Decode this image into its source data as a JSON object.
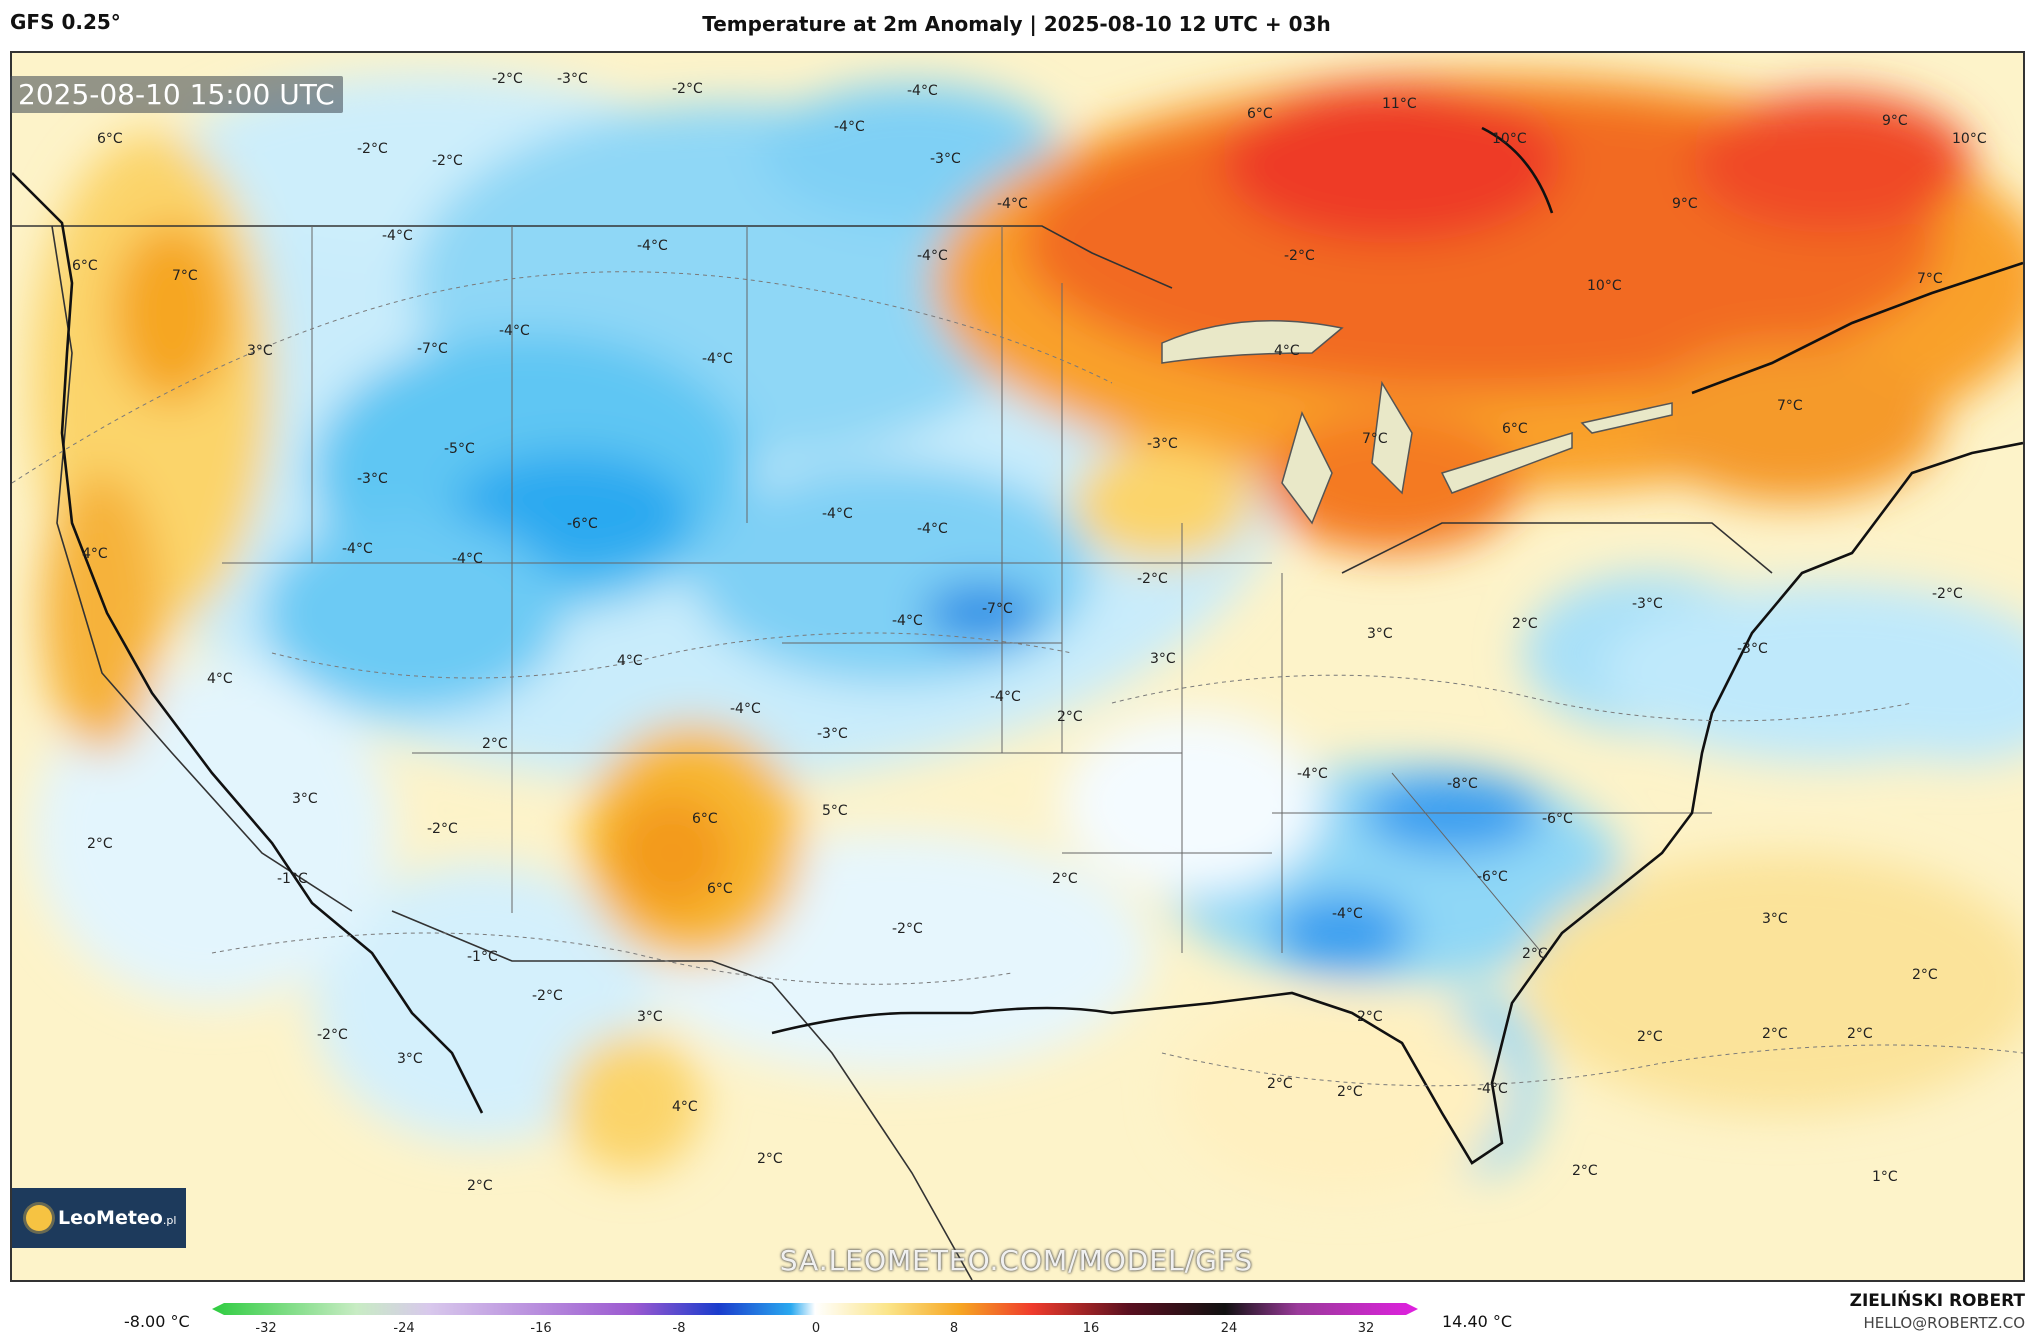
{
  "header": {
    "model": "GFS 0.25°",
    "title": "Temperature at 2m Anomaly | 2025-08-10 12 UTC + 03h"
  },
  "map": {
    "valid_time": "2025-08-10 15:00 UTC",
    "watermark": "SA.LEOMETEO.COM/MODEL/GFS",
    "logo_text": "LeoMeteo",
    "logo_suffix": ".pl",
    "labels": [
      {
        "text": "-2°C"
      },
      {
        "text": "-3°C"
      },
      {
        "text": "-2°C"
      },
      {
        "text": "-4°C"
      },
      {
        "text": "-4°C"
      },
      {
        "text": "-3°C"
      },
      {
        "text": "-4°C"
      },
      {
        "text": "6°C"
      },
      {
        "text": "11°C"
      },
      {
        "text": "10°C"
      },
      {
        "text": "9°C"
      },
      {
        "text": "10°C"
      },
      {
        "text": "6°C"
      },
      {
        "text": "-2°C"
      },
      {
        "text": "-2°C"
      },
      {
        "text": "6°C"
      },
      {
        "text": "7°C"
      },
      {
        "text": "-4°C"
      },
      {
        "text": "-4°C"
      },
      {
        "text": "-4°C"
      },
      {
        "text": "-2°C"
      },
      {
        "text": "9°C"
      },
      {
        "text": "10°C"
      },
      {
        "text": "7°C"
      },
      {
        "text": "3°C"
      },
      {
        "text": "-7°C"
      },
      {
        "text": "-4°C"
      },
      {
        "text": "-4°C"
      },
      {
        "text": "4°C"
      },
      {
        "text": "-5°C"
      },
      {
        "text": "-3°C"
      },
      {
        "text": "-3°C"
      },
      {
        "text": "7°C"
      },
      {
        "text": "6°C"
      },
      {
        "text": "7°C"
      },
      {
        "text": "-6°C"
      },
      {
        "text": "-4°C"
      },
      {
        "text": "-4°C"
      },
      {
        "text": "4°C"
      },
      {
        "text": "-4°C"
      },
      {
        "text": "-4°C"
      },
      {
        "text": "-2°C"
      },
      {
        "text": "-7°C"
      },
      {
        "text": "-4°C"
      },
      {
        "text": "-3°C"
      },
      {
        "text": "-2°C"
      },
      {
        "text": "4°C"
      },
      {
        "text": "4°C"
      },
      {
        "text": "3°C"
      },
      {
        "text": "3°C"
      },
      {
        "text": "2°C"
      },
      {
        "text": "-3°C"
      },
      {
        "text": "-4°C"
      },
      {
        "text": "-4°C"
      },
      {
        "text": "2°C"
      },
      {
        "text": "2°C"
      },
      {
        "text": "-3°C"
      },
      {
        "text": "-4°C"
      },
      {
        "text": "3°C"
      },
      {
        "text": "6°C"
      },
      {
        "text": "5°C"
      },
      {
        "text": "-8°C"
      },
      {
        "text": "-6°C"
      },
      {
        "text": "2°C"
      },
      {
        "text": "-2°C"
      },
      {
        "text": "-1°C"
      },
      {
        "text": "6°C"
      },
      {
        "text": "2°C"
      },
      {
        "text": "-6°C"
      },
      {
        "text": "-4°C"
      },
      {
        "text": "-2°C"
      },
      {
        "text": "-1°C"
      },
      {
        "text": "-2°C"
      },
      {
        "text": "3°C"
      },
      {
        "text": "2°C"
      },
      {
        "text": "3°C"
      },
      {
        "text": "2°C"
      },
      {
        "text": "-2°C"
      },
      {
        "text": "3°C"
      },
      {
        "text": "2°C"
      },
      {
        "text": "2°C"
      },
      {
        "text": "2°C"
      },
      {
        "text": "2°C"
      },
      {
        "text": "4°C"
      },
      {
        "text": "-4°C"
      },
      {
        "text": "2°C"
      },
      {
        "text": "2°C"
      },
      {
        "text": "2°C"
      },
      {
        "text": "1°C"
      },
      {
        "text": "2°C"
      },
      {
        "text": "2°C"
      }
    ]
  },
  "legend": {
    "min_label": "-8.00 °C",
    "max_label": "14.40 °C",
    "ticks": [
      "-32",
      "-24",
      "-16",
      "-8",
      "0",
      "8",
      "16",
      "24",
      "32"
    ],
    "colors": {
      "cold_extreme": "#2ecc40",
      "cold": "#9b59d0",
      "deep_blue": "#1a3ccc",
      "blue": "#2aa9f0",
      "light_blue": "#bfe9fb",
      "neutral": "#ffffff",
      "warm_light": "#fbe58a",
      "warm": "#f6a623",
      "hot": "#ef3b2c",
      "very_hot": "#5a1020",
      "extreme": "#e020e0"
    }
  },
  "credits": {
    "author": "ZIELIŃSKI ROBERT",
    "email": "HELLO@ROBERTZ.CO"
  }
}
